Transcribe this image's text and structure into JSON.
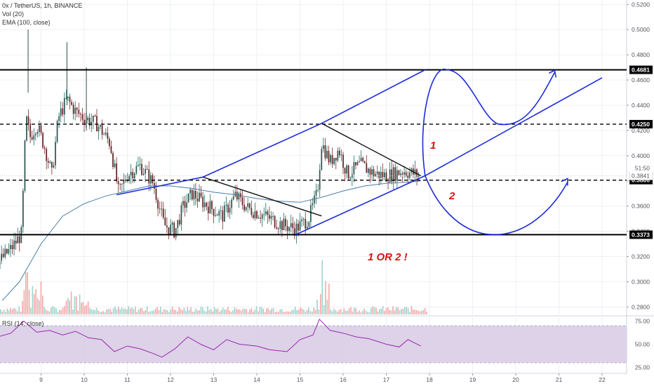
{
  "legend": {
    "symbol": "0x / TetherUS, 1h, BINANCE",
    "volume": "Vol (20)",
    "ema": "EMA (100, close)",
    "rsi": "RSI (14, close)"
  },
  "chart_data": {
    "type": "line",
    "title": "",
    "xlabel": "",
    "ylabel": "",
    "x_ticks": [
      "9",
      "10",
      "11",
      "12",
      "13",
      "14",
      "15",
      "16",
      "17",
      "18",
      "19",
      "20",
      "21",
      "22"
    ],
    "price_axis": {
      "ylim": [
        0.2735,
        0.5235
      ],
      "ticks": [
        "0.5200",
        "0.5000",
        "0.4800",
        "0.4600",
        "0.4400",
        "0.4200",
        "0.4000",
        "0.3800",
        "0.3600",
        "0.3400",
        "0.3200",
        "0.3000",
        "0.2800"
      ],
      "grid": true
    },
    "rsi_axis": {
      "ylim": [
        20,
        80
      ],
      "ticks": [
        "75.00",
        "50.00",
        "25.00"
      ],
      "band": [
        30,
        70
      ]
    },
    "horizontal_levels": [
      {
        "label": "0.4681",
        "value": 0.4681,
        "style": "solid"
      },
      {
        "label": "0.4250",
        "value": 0.425,
        "style": "dashed"
      },
      {
        "label": "0.3806",
        "value": 0.3806,
        "style": "dashed"
      },
      {
        "label": "0.3373",
        "value": 0.3373,
        "style": "solid"
      }
    ],
    "last_price": {
      "label": "0.3841",
      "value": 0.3841,
      "countdown": "51:50"
    },
    "price_path": [
      [
        "8.0",
        0.315
      ],
      [
        "8.3",
        0.326
      ],
      [
        "8.55",
        0.338
      ],
      [
        "8.65",
        0.43
      ],
      [
        "8.75",
        0.415
      ],
      [
        "8.9",
        0.425
      ],
      [
        "9.1",
        0.405
      ],
      [
        "9.25",
        0.385
      ],
      [
        "9.4",
        0.43
      ],
      [
        "9.6",
        0.445
      ],
      [
        "9.8",
        0.435
      ],
      [
        "10.0",
        0.43
      ],
      [
        "10.3",
        0.425
      ],
      [
        "10.6",
        0.41
      ],
      [
        "10.8",
        0.37
      ],
      [
        "11.0",
        0.385
      ],
      [
        "11.3",
        0.392
      ],
      [
        "11.6",
        0.378
      ],
      [
        "11.85",
        0.345
      ],
      [
        "12.1",
        0.34
      ],
      [
        "12.3",
        0.36
      ],
      [
        "12.5",
        0.37
      ],
      [
        "12.8",
        0.362
      ],
      [
        "13.2",
        0.352
      ],
      [
        "13.5",
        0.368
      ],
      [
        "13.8",
        0.358
      ],
      [
        "14.2",
        0.352
      ],
      [
        "14.6",
        0.345
      ],
      [
        "14.9",
        0.342
      ],
      [
        "15.2",
        0.35
      ],
      [
        "15.4",
        0.37
      ],
      [
        "15.5",
        0.41
      ],
      [
        "15.7",
        0.395
      ],
      [
        "15.9",
        0.405
      ],
      [
        "16.1",
        0.385
      ],
      [
        "16.4",
        0.393
      ],
      [
        "16.7",
        0.386
      ],
      [
        "17.0",
        0.384
      ],
      [
        "17.4",
        0.388
      ],
      [
        "17.75",
        0.3845
      ]
    ],
    "ema_path": [
      [
        "8.1",
        0.285
      ],
      [
        "8.5",
        0.3
      ],
      [
        "9.0",
        0.33
      ],
      [
        "9.5",
        0.352
      ],
      [
        "10.0",
        0.362
      ],
      [
        "10.5",
        0.368
      ],
      [
        "11.0",
        0.372
      ],
      [
        "11.5",
        0.376
      ],
      [
        "12.0",
        0.376
      ],
      [
        "12.5",
        0.374
      ],
      [
        "13.0",
        0.371
      ],
      [
        "13.5",
        0.369
      ],
      [
        "14.0",
        0.366
      ],
      [
        "14.5",
        0.364
      ],
      [
        "15.0",
        0.363
      ],
      [
        "15.5",
        0.367
      ],
      [
        "16.0",
        0.372
      ],
      [
        "16.5",
        0.376
      ],
      [
        "17.0",
        0.378
      ],
      [
        "17.5",
        0.379
      ],
      [
        "17.8",
        0.38
      ]
    ],
    "rsi_path": [
      [
        "8.0",
        58
      ],
      [
        "8.3",
        62
      ],
      [
        "8.6",
        75
      ],
      [
        "8.9",
        63
      ],
      [
        "9.2",
        65
      ],
      [
        "9.5",
        60
      ],
      [
        "9.8",
        64
      ],
      [
        "10.1",
        57
      ],
      [
        "10.4",
        55
      ],
      [
        "10.7",
        42
      ],
      [
        "11.0",
        48
      ],
      [
        "11.3",
        45
      ],
      [
        "11.6",
        40
      ],
      [
        "11.8",
        36
      ],
      [
        "12.1",
        45
      ],
      [
        "12.4",
        58
      ],
      [
        "12.7",
        50
      ],
      [
        "13.0",
        44
      ],
      [
        "13.3",
        55
      ],
      [
        "13.6",
        50
      ],
      [
        "14.0",
        48
      ],
      [
        "14.3",
        44
      ],
      [
        "14.7",
        42
      ],
      [
        "15.0",
        55
      ],
      [
        "15.3",
        60
      ],
      [
        "15.45",
        77
      ],
      [
        "15.7",
        65
      ],
      [
        "16.0",
        62
      ],
      [
        "16.3",
        58
      ],
      [
        "16.6",
        56
      ],
      [
        "17.0",
        50
      ],
      [
        "17.3",
        47
      ],
      [
        "17.5",
        55
      ],
      [
        "17.8",
        48
      ]
    ],
    "drawings": {
      "channel_upper": [
        [
          "10.75",
          0.369
        ],
        [
          "12.75",
          0.383
        ],
        [
          "15.5",
          0.4256
        ],
        [
          "17.9",
          0.4681
        ]
      ],
      "channel_lower": [
        [
          "14.9",
          0.3373
        ],
        [
          "17.9",
          0.3841
        ],
        [
          "22.0",
          0.4618
        ]
      ],
      "trend_1": [
        [
          "12.75",
          0.383
        ],
        [
          "15.5",
          0.3522
        ]
      ],
      "trend_2": [
        [
          "15.5",
          0.4256
        ],
        [
          "17.8",
          0.3841
        ]
      ]
    },
    "scenarios": {
      "one": "1",
      "two": "2",
      "caption": "1 OR 2 !"
    }
  }
}
